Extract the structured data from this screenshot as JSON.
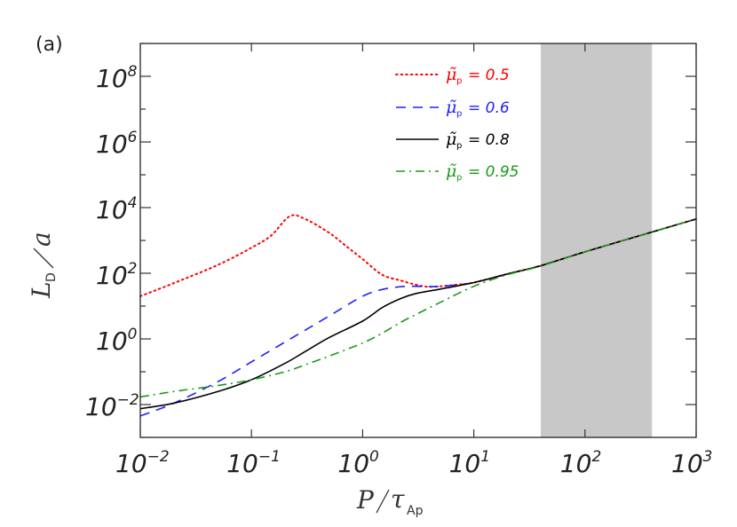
{
  "panel_label": "(a)",
  "chart_data": {
    "type": "line",
    "title": "",
    "panel_label": "(a)",
    "xlabel": "P/τ_Ap",
    "ylabel": "L_D/a",
    "xscale": "log",
    "yscale": "log",
    "xlim": [
      0.01,
      1000
    ],
    "ylim": [
      0.001,
      1000000000
    ],
    "x_ticks": [
      "10^-2",
      "10^-1",
      "10^0",
      "10^1",
      "10^2",
      "10^3"
    ],
    "y_ticks": [
      "10^-2",
      "10^0",
      "10^2",
      "10^4",
      "10^6",
      "10^8"
    ],
    "grid": false,
    "legend_position": "upper right (inside)",
    "shaded_region": {
      "x_from": 40,
      "x_to": 400,
      "color": "#c8c8c8"
    },
    "series": [
      {
        "name": "μ̃p = 0.5",
        "label_symbol": "μ̃",
        "label_sub": "p",
        "label_value": "= 0.5",
        "color": "#ff0000",
        "style": "dotted",
        "x": [
          0.01,
          0.02,
          0.05,
          0.1,
          0.15,
          0.22,
          0.3,
          0.5,
          0.7,
          1.0,
          1.5,
          2.2,
          3.0,
          3.8,
          5.0,
          7.0,
          10,
          20,
          40,
          100,
          400,
          1000
        ],
        "y": [
          20,
          50,
          180,
          600,
          1400,
          5400,
          4600,
          1700,
          700,
          270,
          90,
          60,
          45,
          39,
          40,
          45,
          52,
          95,
          170,
          450,
          1800,
          4500
        ]
      },
      {
        "name": "μ̃p = 0.6",
        "label_symbol": "μ̃",
        "label_sub": "p",
        "label_value": "= 0.6",
        "color": "#1f1fff",
        "style": "dashed",
        "x": [
          0.01,
          0.02,
          0.05,
          0.1,
          0.2,
          0.3,
          0.5,
          1.0,
          1.5,
          2.2,
          3.0,
          4.0,
          6.0,
          10,
          20,
          40,
          100,
          400,
          1000
        ],
        "y": [
          0.0045,
          0.011,
          0.05,
          0.2,
          0.8,
          1.8,
          5.0,
          20,
          32,
          39,
          40,
          39,
          42,
          52,
          95,
          170,
          450,
          1800,
          4500
        ]
      },
      {
        "name": "μ̃p = 0.8",
        "label_symbol": "μ̃",
        "label_sub": "p",
        "label_value": "= 0.8",
        "color": "#000000",
        "style": "solid",
        "x": [
          0.01,
          0.02,
          0.05,
          0.1,
          0.2,
          0.3,
          0.5,
          1.0,
          1.5,
          2.2,
          3.0,
          5.0,
          10,
          20,
          40,
          100,
          400,
          1000
        ],
        "y": [
          0.0075,
          0.011,
          0.025,
          0.057,
          0.18,
          0.4,
          1.1,
          3.5,
          9,
          17,
          24,
          33,
          52,
          95,
          170,
          450,
          1800,
          4500
        ]
      },
      {
        "name": "μ̃p = 0.95",
        "label_symbol": "μ̃",
        "label_sub": "p",
        "label_value": "= 0.95",
        "color": "#1a9a1a",
        "style": "dashdot",
        "x": [
          0.01,
          0.02,
          0.05,
          0.1,
          0.2,
          0.3,
          0.5,
          1.0,
          1.5,
          2.2,
          3.0,
          5.0,
          10,
          20,
          40,
          100,
          400,
          1000
        ],
        "y": [
          0.017,
          0.025,
          0.038,
          0.057,
          0.1,
          0.16,
          0.3,
          0.75,
          1.5,
          3.2,
          5.5,
          13,
          40,
          90,
          165,
          450,
          1800,
          4500
        ]
      }
    ]
  }
}
